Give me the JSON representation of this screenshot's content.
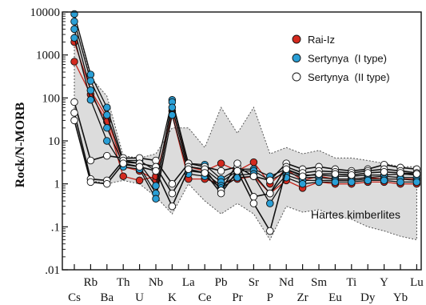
{
  "chart_data": {
    "type": "line",
    "title": "",
    "xlabel": "",
    "ylabel": "Rock/N-MORB",
    "yscale": "log",
    "ylim": [
      0.01,
      10000
    ],
    "yticks": [
      "10000",
      "1000",
      "100",
      "10",
      "1",
      ".1",
      ".01"
    ],
    "grid": false,
    "legend_position": "top-right",
    "categories": [
      "Cs",
      "Rb",
      "Ba",
      "Th",
      "U",
      "Nb",
      "K",
      "La",
      "Ce",
      "Pb",
      "Pr",
      "Sr",
      "P",
      "Nd",
      "Zr",
      "Sm",
      "Eu",
      "Ti",
      "Dy",
      "Y",
      "Yb",
      "Lu"
    ],
    "band": {
      "label": "Hartes kimberlites",
      "fill": "#dcdcdc",
      "upper": [
        9000,
        300,
        110,
        4.5,
        4,
        5,
        20,
        20,
        7,
        60,
        15,
        60,
        5,
        7,
        5,
        6,
        4,
        4,
        3.5,
        3,
        2.5,
        2.5
      ],
      "lower": [
        30,
        1.2,
        1,
        1.2,
        1,
        0.5,
        0.2,
        1,
        0.4,
        0.2,
        0.35,
        0.2,
        0.05,
        0.3,
        0.22,
        0.25,
        0.18,
        0.15,
        0.1,
        0.08,
        0.06,
        0.05
      ]
    },
    "series": [
      {
        "name": "Rai-Iz",
        "color": "#d42a1f",
        "marker": "filled",
        "lines": [
          [
            2000,
            150,
            35,
            2.5,
            2,
            1.2,
            50,
            2.5,
            2,
            3,
            2,
            3.2,
            1,
            2.2,
            1.2,
            1.5,
            1.3,
            1.3,
            1.4,
            1.3,
            1.3,
            1.3
          ],
          [
            700,
            120,
            28,
            1.5,
            1.2,
            1.5,
            40,
            1.3,
            1.3,
            1,
            1.3,
            1.5,
            0.6,
            1.2,
            0.8,
            1.1,
            1,
            1,
            1.1,
            1.1,
            1,
            1
          ]
        ]
      },
      {
        "name": "Sertynya  (I type)",
        "color": "#2a9fd6",
        "marker": "filled",
        "lines": [
          [
            9000,
            350,
            60,
            3.5,
            3.5,
            2,
            90,
            3,
            2.8,
            1.3,
            2.2,
            2.2,
            1.5,
            2.2,
            1.6,
            1.6,
            1.5,
            1.5,
            1.6,
            1.6,
            1.7,
            1.6
          ],
          [
            6000,
            250,
            40,
            3.2,
            3,
            0.9,
            80,
            2.5,
            2.2,
            1.1,
            2,
            2,
            1.2,
            1.9,
            1.4,
            1.4,
            1.3,
            1.3,
            1.4,
            1.5,
            1.4,
            1.4
          ],
          [
            4000,
            150,
            20,
            2.8,
            2.5,
            0.6,
            60,
            2,
            1.8,
            0.9,
            1.6,
            1.7,
            0.6,
            1.6,
            1.2,
            1.2,
            1.2,
            1.2,
            1.3,
            1.3,
            1.3,
            1.2
          ],
          [
            2500,
            90,
            10,
            2.5,
            2.2,
            0.45,
            40,
            1.7,
            1.5,
            0.8,
            1.4,
            1.5,
            0.35,
            1.4,
            1,
            1.1,
            1.1,
            1.1,
            1.2,
            1.2,
            1.1,
            1.1
          ]
        ]
      },
      {
        "name": "Sertynya  (II type)",
        "color": "#ffffff",
        "marker": "open",
        "lines": [
          [
            80,
            3.5,
            4.5,
            4,
            4,
            3.5,
            1,
            3,
            2.5,
            2,
            2.5,
            1.5,
            1.2,
            3,
            2.2,
            2.5,
            2.2,
            2,
            2.2,
            2.8,
            2.4,
            2.2
          ],
          [
            45,
            1.3,
            1.2,
            3.5,
            3,
            2.5,
            0.6,
            2.5,
            2.2,
            0.7,
            3,
            0.5,
            0.6,
            2.5,
            1.8,
            2,
            1.9,
            1.8,
            2,
            2.2,
            2,
            1.8
          ],
          [
            30,
            1.1,
            1,
            3,
            2.5,
            2,
            0.3,
            2.2,
            1.8,
            0.6,
            2,
            0.35,
            0.08,
            2.2,
            1.5,
            1.7,
            1.7,
            1.6,
            1.8,
            1.9,
            1.8,
            1.7
          ]
        ]
      }
    ],
    "annotations": [
      {
        "text": "Hartes kimberlites",
        "position": "lower-right inside band"
      }
    ]
  }
}
